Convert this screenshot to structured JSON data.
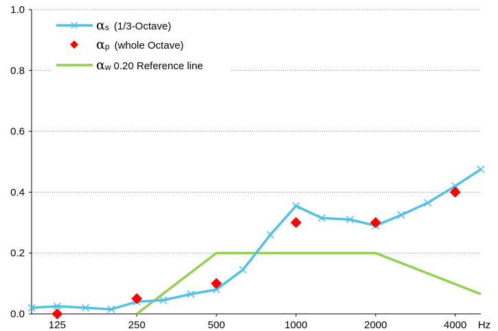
{
  "chart_data": {
    "type": "line",
    "x_scale": "log2",
    "x_unit": "Hz",
    "xlim": [
      100,
      5000
    ],
    "ylim": [
      0,
      1.0
    ],
    "y_ticks": [
      0.0,
      0.2,
      0.4,
      0.6,
      0.8,
      1.0
    ],
    "y_tick_labels": [
      "0.0",
      "0.2",
      "0.4",
      "0.6",
      "0.8",
      "1.0"
    ],
    "x_ticks": [
      125,
      250,
      500,
      1000,
      2000,
      4000
    ],
    "x_tick_labels": [
      "125",
      "250",
      "500",
      "1000",
      "2000",
      "4000"
    ],
    "grid": "horizontal dotted",
    "legend_position": "top-left",
    "series": [
      {
        "name": "(1/3-Octave)",
        "symbol": "α",
        "subscript": "s",
        "style": "line with x markers",
        "color": "#4fc1e9",
        "x": [
          100,
          125,
          160,
          200,
          250,
          315,
          400,
          500,
          630,
          800,
          1000,
          1250,
          1600,
          2000,
          2500,
          3150,
          4000,
          5000
        ],
        "y": [
          0.02,
          0.025,
          0.02,
          0.015,
          0.04,
          0.045,
          0.065,
          0.08,
          0.145,
          0.26,
          0.355,
          0.315,
          0.31,
          0.29,
          0.325,
          0.365,
          0.42,
          0.475
        ]
      },
      {
        "name": "(whole Octave)",
        "symbol": "α",
        "subscript": "p",
        "style": "diamond markers",
        "color": "#ff0000",
        "x": [
          125,
          250,
          500,
          1000,
          2000,
          4000
        ],
        "y": [
          0.0,
          0.05,
          0.1,
          0.3,
          0.3,
          0.4
        ]
      },
      {
        "name": "0.20 Reference line",
        "symbol": "α",
        "subscript": "w",
        "style": "line",
        "color": "#92d050",
        "x": [
          250,
          500,
          2000,
          5000
        ],
        "y": [
          0.0,
          0.2,
          0.2,
          0.065
        ]
      }
    ]
  }
}
